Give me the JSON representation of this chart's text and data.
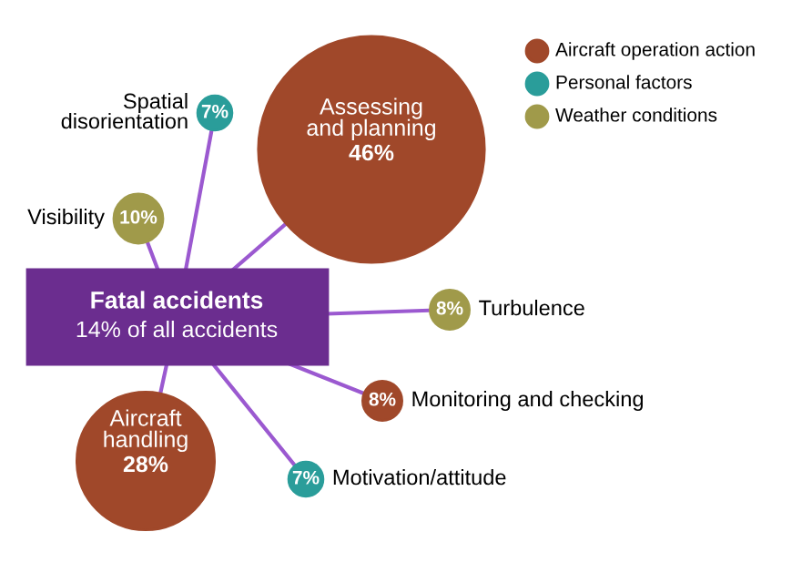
{
  "chart_data": {
    "type": "other",
    "title": "Fatal accidents",
    "subtitle": "14% of all accidents",
    "categories": [
      "Assessing\nand planning",
      "Turbulence",
      "Monitoring and checking",
      "Motivation/attitude",
      "Aircraft\nhandling",
      "Visibility",
      "Spatial\ndisorientation"
    ],
    "series": [
      {
        "name": "Aircraft operation action",
        "color": "#a0482a",
        "values": [
          46,
          null,
          8,
          null,
          28,
          null,
          null
        ],
        "value_labels": [
          "46%",
          null,
          "8%",
          null,
          "28%",
          null,
          null
        ]
      },
      {
        "name": "Personal factors",
        "color": "#2a9d9a",
        "values": [
          null,
          null,
          null,
          7,
          null,
          null,
          7
        ],
        "value_labels": [
          null,
          null,
          null,
          "7%",
          null,
          null,
          "7%"
        ]
      },
      {
        "name": "Weather conditions",
        "color": "#a09a4a",
        "values": [
          null,
          8,
          null,
          null,
          null,
          10,
          null
        ],
        "value_labels": [
          null,
          "8%",
          null,
          null,
          null,
          "10%",
          null
        ]
      }
    ],
    "legend": "top right"
  }
}
